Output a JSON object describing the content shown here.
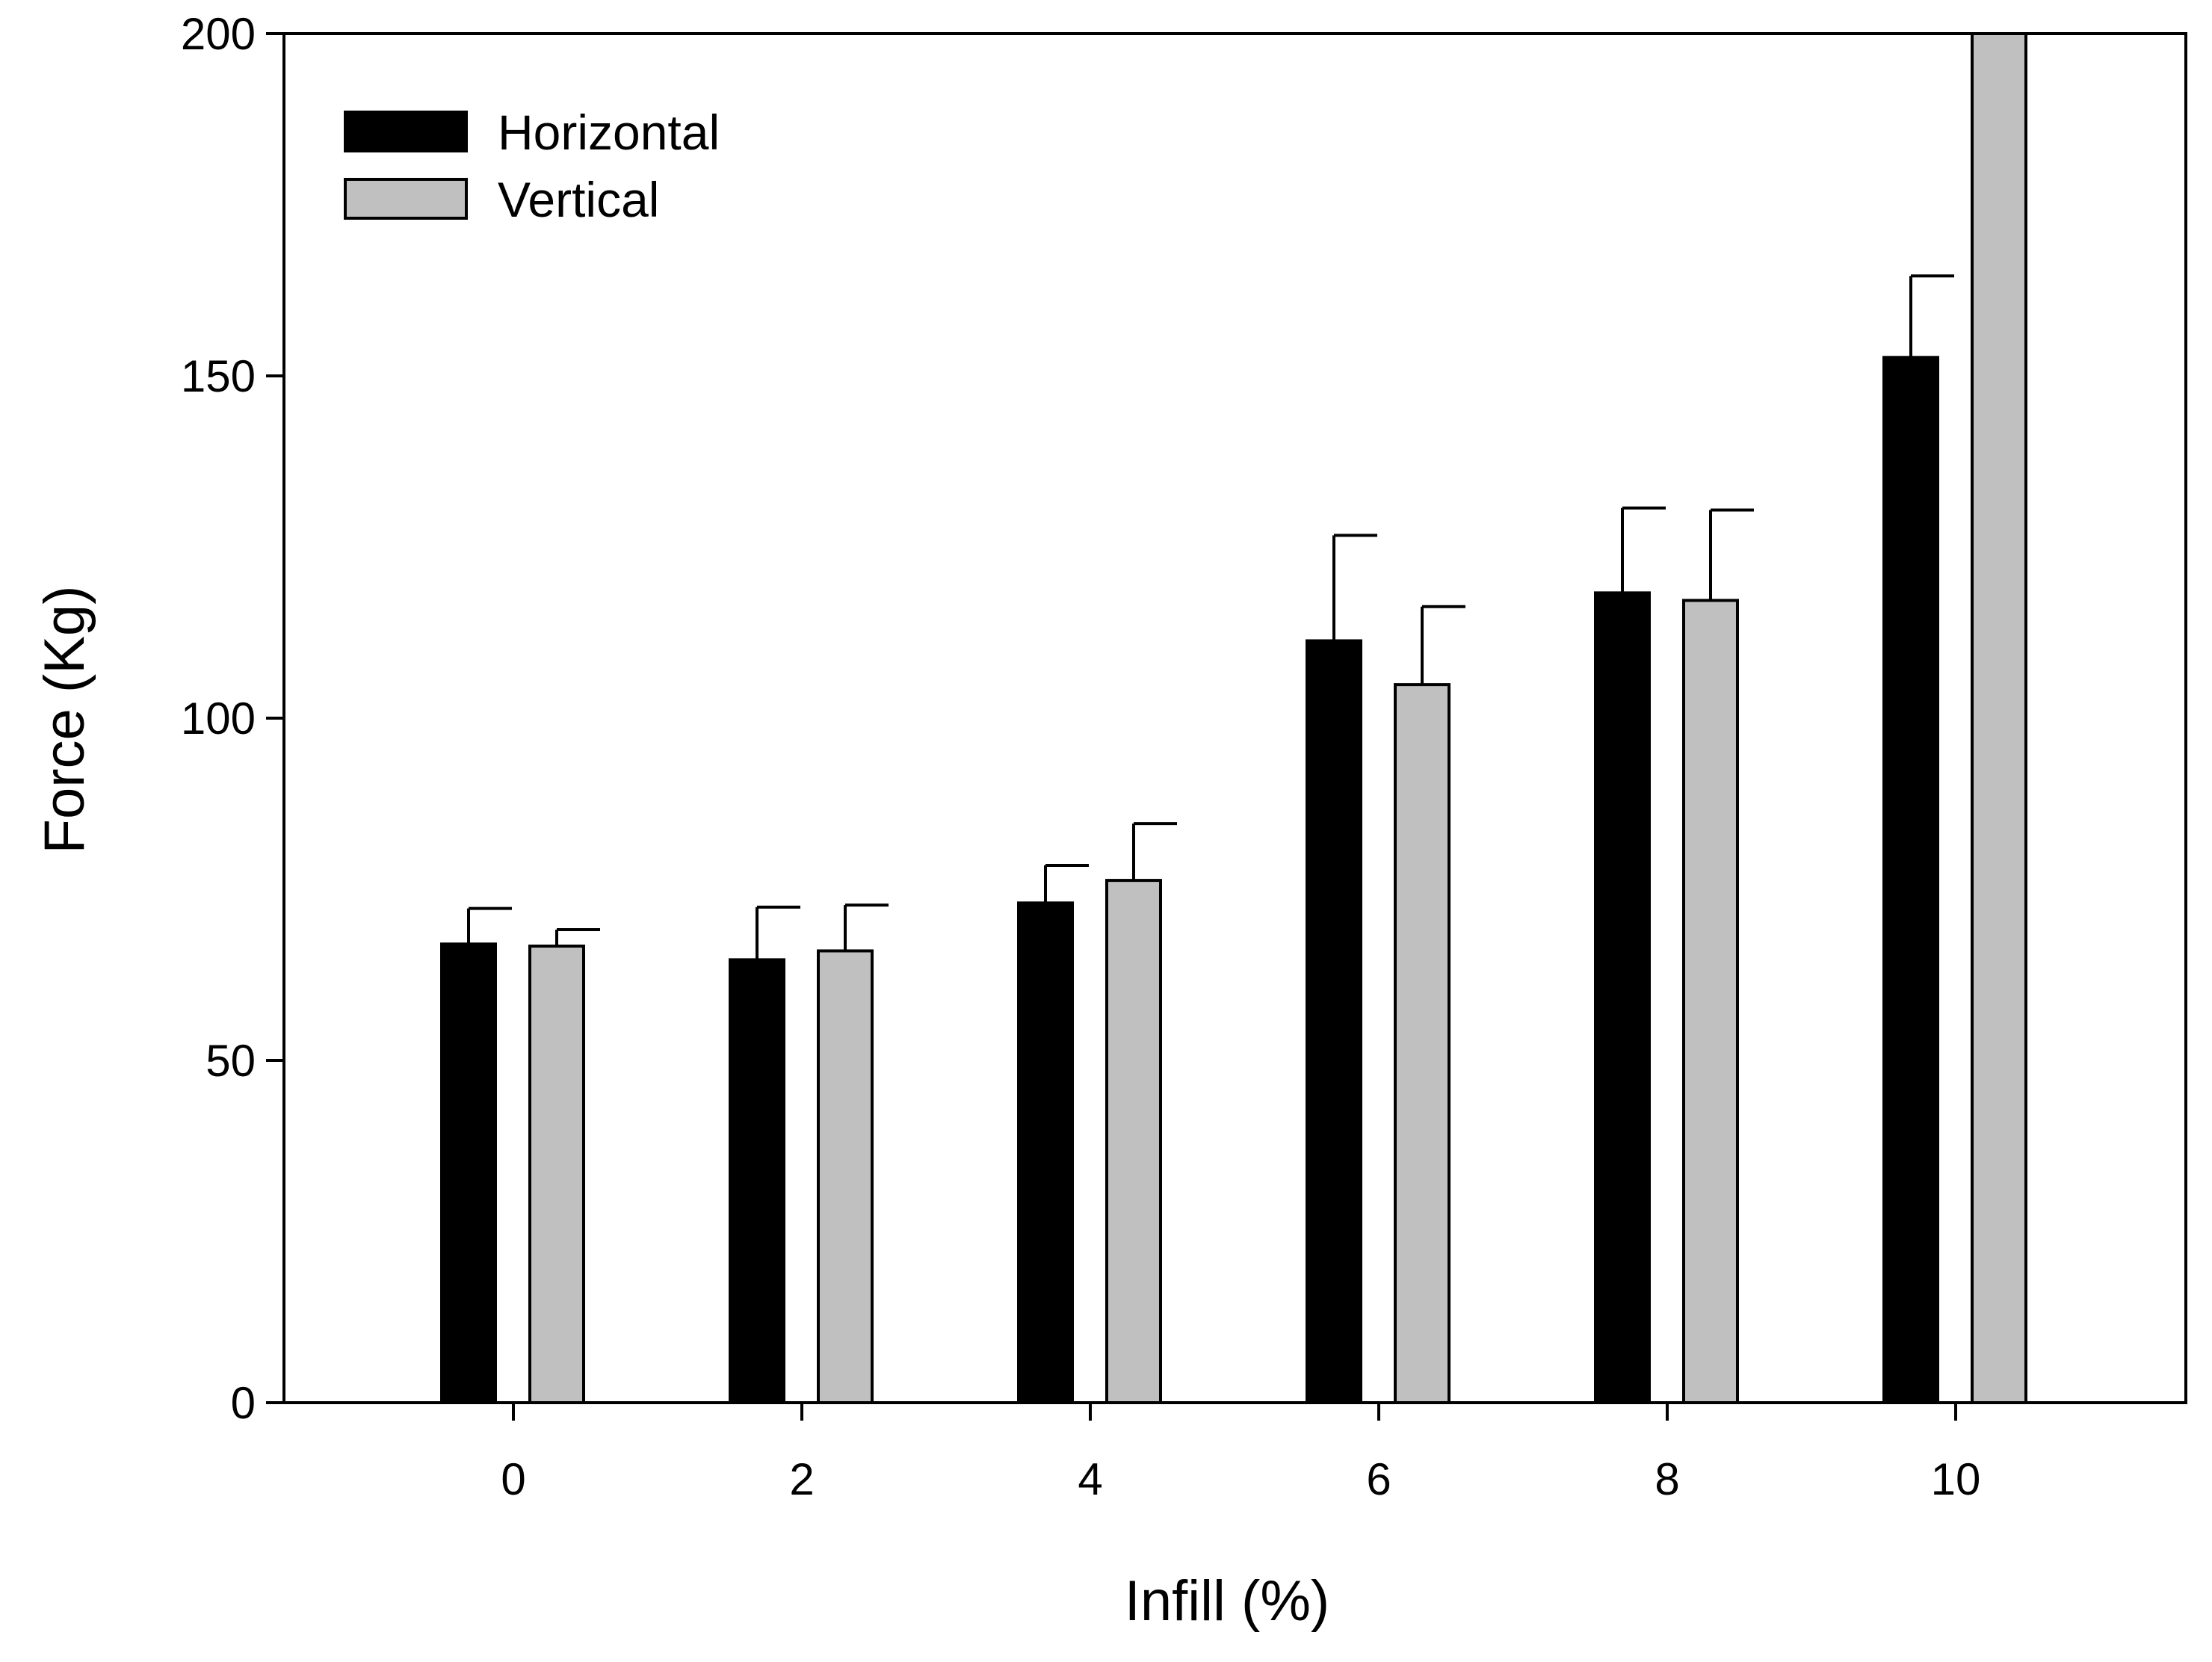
{
  "chart_data": {
    "type": "bar",
    "title": "",
    "xlabel": "Infill (%)",
    "ylabel": "Force (Kg)",
    "categories": [
      "0",
      "2",
      "4",
      "6",
      "8",
      "10"
    ],
    "yticks": [
      "0",
      "50",
      "100",
      "150",
      "200"
    ],
    "ylim": [
      0,
      200
    ],
    "grid": false,
    "legend_position": "top-left",
    "series": [
      {
        "name": "Horizontal",
        "color": "#000000",
        "values": [
          67,
          64.7,
          73,
          111.3,
          118.3,
          152.7
        ],
        "errors": [
          5.2,
          7.7,
          5.5,
          15.4,
          12.4,
          11.9
        ]
      },
      {
        "name": "Vertical",
        "color": "#c0c0c0",
        "values": [
          66.7,
          66,
          76.3,
          104.9,
          117.2,
          200
        ],
        "errors": [
          2.4,
          6.7,
          8.3,
          11.4,
          13.2,
          0
        ]
      }
    ]
  }
}
